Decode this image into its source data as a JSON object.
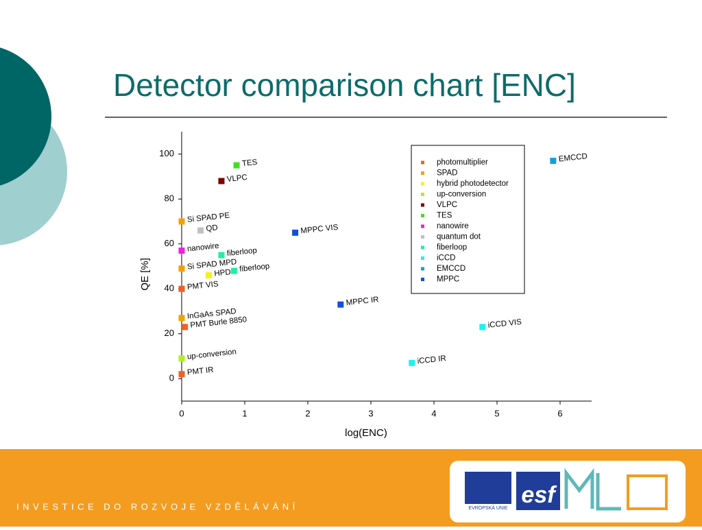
{
  "chart_data": {
    "type": "scatter",
    "title": "Detector comparison chart [ENC]",
    "x_label": "log(ENC)",
    "y_label": "QE [%]",
    "xlim": [
      0,
      6.5
    ],
    "xticks": [
      0,
      1,
      2,
      3,
      4,
      5,
      6
    ],
    "ylim": [
      -10,
      110
    ],
    "yticks": [
      0,
      20,
      40,
      60,
      80,
      100
    ],
    "legend": "upper right",
    "series": [
      {
        "name": "photomultiplier",
        "color": "#f06020",
        "x": [
          0,
          0.05,
          0
        ],
        "values": [
          40,
          23,
          2
        ],
        "labels": [
          "PMT VIS",
          "PMT Burle 8850",
          "PMT IR"
        ]
      },
      {
        "name": "SPAD",
        "color": "#f5a000",
        "x": [
          0,
          0,
          0
        ],
        "values": [
          70,
          49,
          27
        ],
        "labels": [
          "Si SPAD PE",
          "Si SPAD MPD",
          "InGaAs SPAD"
        ]
      },
      {
        "name": "hybrid photodetector",
        "color": "#f5f020",
        "x": [
          0.43
        ],
        "values": [
          46
        ],
        "labels": [
          "HPD"
        ]
      },
      {
        "name": "up-conversion",
        "color": "#b0f020",
        "x": [
          0
        ],
        "values": [
          9
        ],
        "labels": [
          "up-conversion"
        ]
      },
      {
        "name": "VLPC",
        "color": "#800000",
        "x": [
          0.63
        ],
        "values": [
          88
        ],
        "labels": [
          "VLPC"
        ]
      },
      {
        "name": "TES",
        "color": "#40e020",
        "x": [
          0.87
        ],
        "values": [
          95
        ],
        "labels": [
          "TES"
        ]
      },
      {
        "name": "nanowire",
        "color": "#f020e0",
        "x": [
          0
        ],
        "values": [
          57
        ],
        "labels": [
          "nanowire"
        ]
      },
      {
        "name": "quantum dot",
        "color": "#c0c0c0",
        "x": [
          0.3
        ],
        "values": [
          66
        ],
        "labels": [
          "QD"
        ]
      },
      {
        "name": "fiberloop",
        "color": "#20f0a0",
        "x": [
          0.63,
          0.83
        ],
        "values": [
          55,
          48
        ],
        "labels": [
          "fiberloop",
          "fiberloop"
        ]
      },
      {
        "name": "iCCD",
        "color": "#20f0f0",
        "x": [
          3.65,
          4.77
        ],
        "values": [
          7,
          23
        ],
        "labels": [
          "iCCD IR",
          "iCCD VIS"
        ]
      },
      {
        "name": "EMCCD",
        "color": "#10a0e0",
        "x": [
          5.89
        ],
        "values": [
          97
        ],
        "labels": [
          "EMCCD"
        ]
      },
      {
        "name": "MPPC",
        "color": "#1050e0",
        "x": [
          1.8,
          2.52
        ],
        "values": [
          65,
          33
        ],
        "labels": [
          "MPPC VIS",
          "MPPC IR"
        ]
      }
    ]
  },
  "footer": {
    "text": "INVESTICE DO ROZVOJE VZDĚLÁVÁNÍ",
    "logo_eu": "EVROPSKÁ UNIE",
    "logo_esf": "esf"
  }
}
